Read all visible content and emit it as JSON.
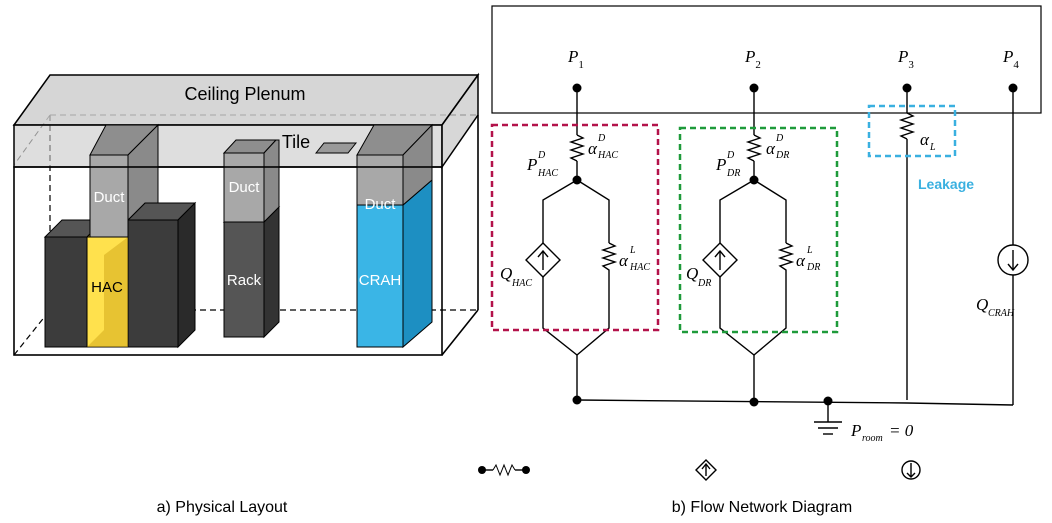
{
  "physical": {
    "ceiling_label": "Ceiling Plenum",
    "tile_label": "Tile",
    "duct_label": "Duct",
    "hac_label": "HAC",
    "rack_label": "Rack",
    "crah_label": "CRAH",
    "caption": "a) Physical Layout"
  },
  "network": {
    "p1": "P",
    "p1_sub": "1",
    "p2": "P",
    "p2_sub": "2",
    "p3": "P",
    "p3_sub": "3",
    "p4": "P",
    "p4_sub": "4",
    "alpha_hac_d": "α",
    "alpha_hac_d_sup": "D",
    "alpha_hac_d_sub": "HAC",
    "p_hac_d": "P",
    "p_hac_d_sup": "D",
    "p_hac_d_sub": "HAC",
    "q_hac": "Q",
    "q_hac_sub": "HAC",
    "alpha_hac_l": "α",
    "alpha_hac_l_sup": "L",
    "alpha_hac_l_sub": "HAC",
    "alpha_dr_d": "α",
    "alpha_dr_d_sup": "D",
    "alpha_dr_d_sub": "DR",
    "p_dr_d": "P",
    "p_dr_d_sup": "D",
    "p_dr_d_sub": "DR",
    "q_dr": "Q",
    "q_dr_sub": "DR",
    "alpha_dr_l": "α",
    "alpha_dr_l_sup": "L",
    "alpha_dr_l_sub": "DR",
    "alpha_l": "α",
    "alpha_l_sub": "L",
    "leakage_label": "Leakage",
    "q_crah": "Q",
    "q_crah_sub": "CRAH",
    "p_room": "P",
    "p_room_sub": "room",
    "p_room_eq": " = 0",
    "caption": "b) Flow Network Diagram"
  },
  "colors": {
    "hac_box": "#b3124a",
    "dr_box": "#1e9a3a",
    "leak_box": "#3ab0e0",
    "leak_text": "#3ab0e0",
    "hac_fill": "#ffe14d",
    "crah_fill": "#3ab5e6"
  }
}
